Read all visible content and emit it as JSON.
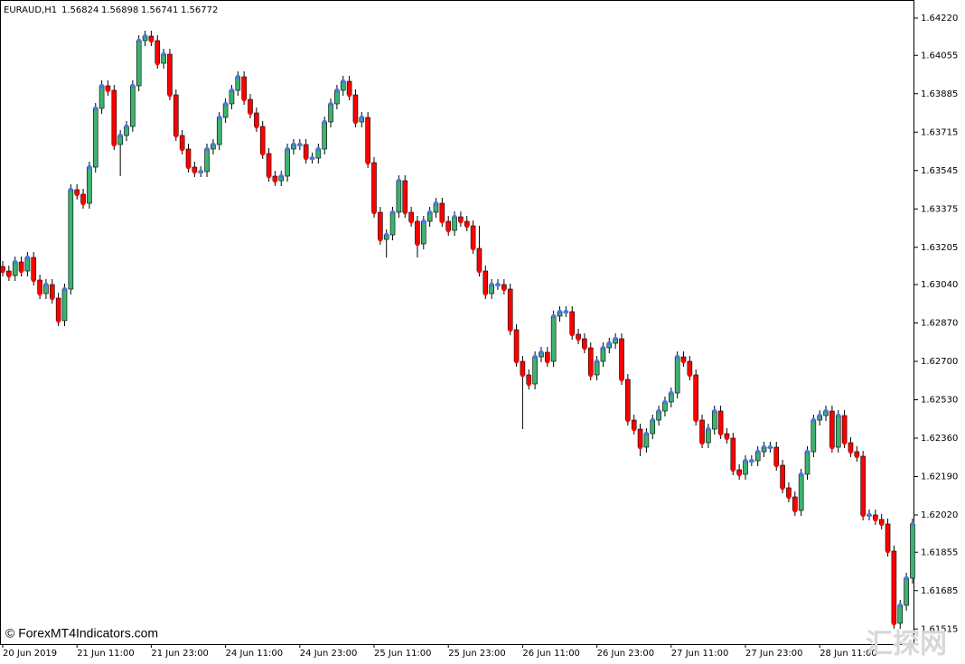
{
  "chart_data": {
    "type": "candlestick",
    "symbol": "EURAUD,H1",
    "info_values": [
      "1.56824",
      "1.56898",
      "1.56741",
      "1.56772"
    ],
    "watermark": "© ForexMT4Indicators.com",
    "watermark_2": "汇探网",
    "up_color": "#3cb371",
    "down_color": "#ff0000",
    "dot_up_color": "#4a7bdc",
    "dot_down_color": "#ff0000",
    "ylim": [
      1.61448,
      1.643
    ],
    "yticks": [
      {
        "value": 1.6422,
        "label": "1.64220"
      },
      {
        "value": 1.64055,
        "label": "1.64055"
      },
      {
        "value": 1.63885,
        "label": "1.63885"
      },
      {
        "value": 1.63715,
        "label": "1.63715"
      },
      {
        "value": 1.63545,
        "label": "1.63545"
      },
      {
        "value": 1.63375,
        "label": "1.63375"
      },
      {
        "value": 1.63205,
        "label": "1.63205"
      },
      {
        "value": 1.6304,
        "label": "1.63040"
      },
      {
        "value": 1.6287,
        "label": "1.62870"
      },
      {
        "value": 1.627,
        "label": "1.62700"
      },
      {
        "value": 1.6253,
        "label": "1.62530"
      },
      {
        "value": 1.6236,
        "label": "1.62360"
      },
      {
        "value": 1.6219,
        "label": "1.62190"
      },
      {
        "value": 1.6202,
        "label": "1.62020"
      },
      {
        "value": 1.61855,
        "label": "1.61855"
      },
      {
        "value": 1.61685,
        "label": "1.61685"
      },
      {
        "value": 1.61515,
        "label": "1.61515"
      }
    ],
    "categories": [
      "20 Jun 2019",
      null,
      null,
      null,
      null,
      null,
      null,
      null,
      null,
      null,
      null,
      null,
      "21 Jun 11:00",
      null,
      null,
      null,
      null,
      null,
      null,
      null,
      null,
      null,
      null,
      null,
      "21 Jun 23:00",
      null,
      null,
      null,
      null,
      null,
      null,
      null,
      null,
      null,
      null,
      null,
      "24 Jun 11:00",
      null,
      null,
      null,
      null,
      null,
      null,
      null,
      null,
      null,
      null,
      null,
      "24 Jun 23:00",
      null,
      null,
      null,
      null,
      null,
      null,
      null,
      null,
      null,
      null,
      null,
      "25 Jun 11:00",
      null,
      null,
      null,
      null,
      null,
      null,
      null,
      null,
      null,
      null,
      null,
      "25 Jun 23:00",
      null,
      null,
      null,
      null,
      null,
      null,
      null,
      null,
      null,
      null,
      null,
      "26 Jun 11:00",
      null,
      null,
      null,
      null,
      null,
      null,
      null,
      null,
      null,
      null,
      null,
      "26 Jun 23:00",
      null,
      null,
      null,
      null,
      null,
      null,
      null,
      null,
      null,
      null,
      null,
      "27 Jun 11:00",
      null,
      null,
      null,
      null,
      null,
      null,
      null,
      null,
      null,
      null,
      null,
      "27 Jun 23:00",
      null,
      null,
      null,
      null,
      null,
      null,
      null,
      null,
      null,
      null,
      null,
      "28 Jun 11:00",
      null,
      null,
      null,
      null,
      null,
      null,
      null,
      null,
      null,
      null,
      null,
      null,
      null,
      null,
      null
    ],
    "open": [
      1.6312,
      1.631,
      1.6308,
      1.6314,
      1.631,
      1.6316,
      1.6306,
      1.63,
      1.6304,
      1.6298,
      1.6288,
      1.6302,
      1.6346,
      1.6344,
      1.634,
      1.6356,
      1.6382,
      1.6392,
      1.639,
      1.6366,
      1.637,
      1.6374,
      1.6392,
      1.6412,
      1.6414,
      1.6412,
      1.6402,
      1.6406,
      1.6388,
      1.637,
      1.6364,
      1.6356,
      1.6354,
      1.6354,
      1.6364,
      1.6366,
      1.6378,
      1.6384,
      1.639,
      1.6396,
      1.6386,
      1.638,
      1.6374,
      1.6362,
      1.6352,
      1.635,
      1.6352,
      1.6364,
      1.6366,
      1.6366,
      1.636,
      1.636,
      1.6364,
      1.6376,
      1.6384,
      1.639,
      1.6394,
      1.6388,
      1.6376,
      1.6378,
      1.6358,
      1.6336,
      1.6324,
      1.6326,
      1.6336,
      1.635,
      1.6336,
      1.6332,
      1.6322,
      1.6332,
      1.6336,
      1.634,
      1.6332,
      1.6328,
      1.6334,
      1.6332,
      1.633,
      1.632,
      1.631,
      1.63,
      1.6304,
      1.6304,
      1.6302,
      1.6284,
      1.627,
      1.6264,
      1.626,
      1.6272,
      1.6274,
      1.627,
      1.629,
      1.6292,
      1.6292,
      1.6282,
      1.628,
      1.6276,
      1.6264,
      1.627,
      1.6276,
      1.6278,
      1.628,
      1.6262,
      1.6244,
      1.624,
      1.6232,
      1.6238,
      1.6244,
      1.6248,
      1.6252,
      1.6256,
      1.6272,
      1.627,
      1.6264,
      1.6244,
      1.6234,
      1.624,
      1.6248,
      1.6238,
      1.6236,
      1.6222,
      1.622,
      1.6226,
      1.6226,
      1.623,
      1.6232,
      1.6232,
      1.6224,
      1.6214,
      1.621,
      1.6204,
      1.622,
      1.623,
      1.6244,
      1.6246,
      1.6248,
      1.6232,
      1.6246,
      1.6234,
      1.623,
      1.6228,
      1.6202,
      1.6202,
      1.62,
      1.6198,
      1.6186,
      1.6154,
      1.6162,
      1.6174
    ],
    "high": [
      1.63144,
      1.63124,
      1.63164,
      1.63164,
      1.63184,
      1.63184,
      1.63084,
      1.63064,
      1.63064,
      1.63004,
      1.63044,
      1.63484,
      1.63484,
      1.63464,
      1.63584,
      1.63844,
      1.63944,
      1.63944,
      1.63924,
      1.63724,
      1.63764,
      1.63944,
      1.64144,
      1.64164,
      1.64164,
      1.64144,
      1.64084,
      1.64084,
      1.63904,
      1.63724,
      1.63664,
      1.63584,
      1.63564,
      1.63664,
      1.63684,
      1.63804,
      1.63864,
      1.63924,
      1.63984,
      1.63984,
      1.63884,
      1.63824,
      1.63764,
      1.63644,
      1.63544,
      1.63544,
      1.63664,
      1.63684,
      1.63684,
      1.63684,
      1.63624,
      1.63664,
      1.63784,
      1.63864,
      1.63924,
      1.63964,
      1.63964,
      1.63904,
      1.63804,
      1.63804,
      1.63604,
      1.63384,
      1.63284,
      1.63384,
      1.63524,
      1.63524,
      1.63384,
      1.63344,
      1.63344,
      1.63384,
      1.63424,
      1.63424,
      1.63344,
      1.63364,
      1.63364,
      1.63344,
      1.63324,
      1.633,
      1.63124,
      1.63064,
      1.63064,
      1.63064,
      1.63044,
      1.62864,
      1.62724,
      1.62664,
      1.62744,
      1.62764,
      1.62764,
      1.62924,
      1.62944,
      1.62944,
      1.62944,
      1.62844,
      1.62824,
      1.62784,
      1.62724,
      1.62784,
      1.62804,
      1.62824,
      1.62824,
      1.62644,
      1.62464,
      1.62424,
      1.62404,
      1.62464,
      1.62504,
      1.62544,
      1.62584,
      1.62744,
      1.62744,
      1.62724,
      1.62664,
      1.62464,
      1.62424,
      1.62504,
      1.62504,
      1.62404,
      1.62384,
      1.62244,
      1.62284,
      1.62284,
      1.62324,
      1.62344,
      1.62344,
      1.62344,
      1.62264,
      1.62164,
      1.62124,
      1.62224,
      1.62324,
      1.62464,
      1.62484,
      1.62504,
      1.62504,
      1.62484,
      1.62484,
      1.62364,
      1.62324,
      1.62304,
      1.62044,
      1.62044,
      1.62024,
      1.62004,
      1.61884,
      1.61644,
      1.61764,
      1.62004
    ],
    "low": [
      1.63076,
      1.63056,
      1.63056,
      1.63076,
      1.63076,
      1.63036,
      1.62976,
      1.62976,
      1.62956,
      1.62856,
      1.62856,
      1.62996,
      1.63416,
      1.63376,
      1.63376,
      1.63536,
      1.63796,
      1.63876,
      1.63636,
      1.6352,
      1.63676,
      1.63716,
      1.63896,
      1.64096,
      1.64096,
      1.63996,
      1.63996,
      1.63856,
      1.63676,
      1.63616,
      1.63536,
      1.63516,
      1.63516,
      1.63516,
      1.63616,
      1.63636,
      1.63756,
      1.63816,
      1.63876,
      1.63836,
      1.63776,
      1.63716,
      1.63596,
      1.63496,
      1.63476,
      1.63476,
      1.63496,
      1.63616,
      1.63636,
      1.63576,
      1.63576,
      1.63576,
      1.63616,
      1.63736,
      1.63816,
      1.63876,
      1.63856,
      1.63736,
      1.63736,
      1.63556,
      1.63336,
      1.63216,
      1.6316,
      1.63236,
      1.63336,
      1.63336,
      1.63296,
      1.6316,
      1.63196,
      1.63296,
      1.63336,
      1.63296,
      1.63256,
      1.63256,
      1.63296,
      1.63276,
      1.63176,
      1.63076,
      1.62976,
      1.62976,
      1.63016,
      1.62996,
      1.62816,
      1.62676,
      1.624,
      1.62576,
      1.62576,
      1.62696,
      1.62676,
      1.62676,
      1.62876,
      1.62896,
      1.62796,
      1.62776,
      1.62736,
      1.62616,
      1.62616,
      1.62676,
      1.62736,
      1.62756,
      1.62596,
      1.62416,
      1.62376,
      1.6228,
      1.62296,
      1.62356,
      1.62416,
      1.62456,
      1.62496,
      1.62536,
      1.62676,
      1.62616,
      1.62416,
      1.62316,
      1.62316,
      1.62376,
      1.62356,
      1.62336,
      1.62196,
      1.62176,
      1.62176,
      1.62236,
      1.62236,
      1.62276,
      1.62296,
      1.62216,
      1.62116,
      1.62076,
      1.62016,
      1.62016,
      1.62176,
      1.62276,
      1.62416,
      1.62436,
      1.62296,
      1.62296,
      1.62316,
      1.62276,
      1.62256,
      1.61996,
      1.61996,
      1.61976,
      1.61956,
      1.61836,
      1.61516,
      1.61516,
      1.61596,
      1.61716
    ],
    "close": [
      1.631,
      1.6308,
      1.6314,
      1.631,
      1.6316,
      1.6306,
      1.63,
      1.6304,
      1.6298,
      1.6288,
      1.6302,
      1.6346,
      1.6344,
      1.634,
      1.6356,
      1.6382,
      1.6392,
      1.639,
      1.6366,
      1.637,
      1.6374,
      1.6392,
      1.6412,
      1.6414,
      1.6412,
      1.6402,
      1.6406,
      1.6388,
      1.637,
      1.6364,
      1.6356,
      1.6354,
      1.6354,
      1.6364,
      1.6366,
      1.6378,
      1.6384,
      1.639,
      1.6396,
      1.6386,
      1.638,
      1.6374,
      1.6362,
      1.6352,
      1.635,
      1.6352,
      1.6364,
      1.6366,
      1.6366,
      1.636,
      1.636,
      1.6364,
      1.6376,
      1.6384,
      1.639,
      1.6394,
      1.6388,
      1.6376,
      1.6378,
      1.6358,
      1.6336,
      1.6324,
      1.6326,
      1.6336,
      1.635,
      1.6336,
      1.6332,
      1.6322,
      1.6332,
      1.6336,
      1.634,
      1.6332,
      1.6328,
      1.6334,
      1.6332,
      1.633,
      1.632,
      1.631,
      1.63,
      1.6304,
      1.6304,
      1.6302,
      1.6284,
      1.627,
      1.6264,
      1.626,
      1.6272,
      1.6274,
      1.627,
      1.629,
      1.6292,
      1.6292,
      1.6282,
      1.628,
      1.6276,
      1.6264,
      1.627,
      1.6276,
      1.6278,
      1.628,
      1.6262,
      1.6244,
      1.624,
      1.6232,
      1.6238,
      1.6244,
      1.6248,
      1.6252,
      1.6256,
      1.6272,
      1.627,
      1.6264,
      1.6244,
      1.6234,
      1.624,
      1.6248,
      1.6238,
      1.6236,
      1.6222,
      1.622,
      1.6226,
      1.6226,
      1.623,
      1.6232,
      1.6232,
      1.6224,
      1.6214,
      1.621,
      1.6204,
      1.622,
      1.623,
      1.6244,
      1.6246,
      1.6248,
      1.6232,
      1.6246,
      1.6234,
      1.623,
      1.6228,
      1.6202,
      1.6202,
      1.62,
      1.6198,
      1.6186,
      1.6154,
      1.6162,
      1.6174,
      1.6198
    ]
  }
}
